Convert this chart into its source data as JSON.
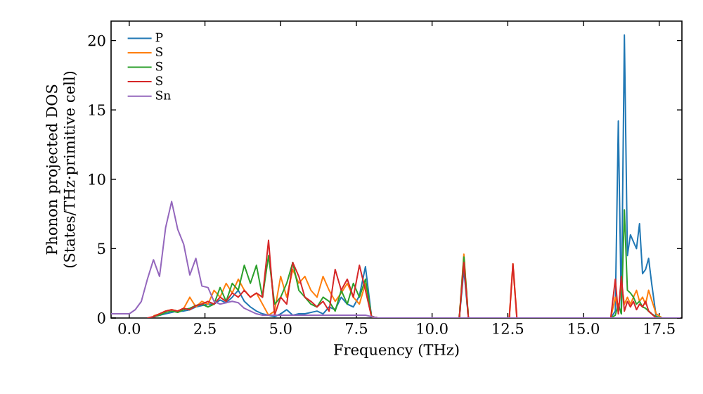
{
  "chart_data": {
    "type": "line",
    "xlabel": "Frequency (THz)",
    "ylabel": "Phonon projected DOS (States/THz·primitive cell)",
    "xlim": [
      -0.6,
      18.25
    ],
    "ylim": [
      0,
      21.4
    ],
    "xticks": [
      {
        "value": 0,
        "label": "0.0"
      },
      {
        "value": 2.5,
        "label": "2.5"
      },
      {
        "value": 5,
        "label": "5.0"
      },
      {
        "value": 7.5,
        "label": "7.5"
      },
      {
        "value": 10,
        "label": "10.0"
      },
      {
        "value": 12.5,
        "label": "12.5"
      },
      {
        "value": 15,
        "label": "15.0"
      },
      {
        "value": 17.5,
        "label": "17.5"
      }
    ],
    "yticks": [
      0,
      5,
      10,
      15,
      20
    ],
    "legend": "top left",
    "marker": "none",
    "line_style": "solid",
    "grid": false,
    "x": [
      -0.6,
      -0.4,
      -0.2,
      0,
      0.2,
      0.4,
      0.6,
      0.8,
      1.0,
      1.2,
      1.4,
      1.6,
      1.8,
      2.0,
      2.2,
      2.4,
      2.6,
      2.8,
      3.0,
      3.2,
      3.4,
      3.6,
      3.8,
      4.0,
      4.2,
      4.4,
      4.6,
      4.8,
      5.0,
      5.2,
      5.4,
      5.6,
      5.8,
      6.0,
      6.2,
      6.4,
      6.6,
      6.8,
      7.0,
      7.2,
      7.4,
      7.6,
      7.8,
      8.0,
      8.2,
      10.9,
      11.05,
      11.2,
      12.55,
      12.67,
      12.8,
      15.9,
      16.05,
      16.15,
      16.25,
      16.35,
      16.45,
      16.55,
      16.65,
      16.75,
      16.85,
      16.95,
      17.05,
      17.15,
      17.25,
      17.4,
      17.6,
      18.2
    ],
    "series": [
      {
        "name": "P",
        "color": "#1f77b4",
        "values": [
          null,
          null,
          null,
          null,
          null,
          null,
          null,
          0.1,
          0.2,
          0.3,
          0.4,
          0.5,
          0.5,
          0.6,
          0.8,
          0.9,
          1.0,
          1.0,
          1.3,
          1.1,
          1.5,
          2.0,
          1.2,
          0.8,
          0.5,
          0.3,
          0.2,
          0.1,
          0.3,
          0.6,
          0.2,
          0.3,
          0.3,
          0.4,
          0.5,
          0.3,
          0.8,
          0.6,
          1.5,
          1.0,
          0.8,
          1.6,
          3.7,
          0.1,
          0,
          0,
          3.5,
          0,
          0,
          null,
          0,
          0,
          0.5,
          14.2,
          0.3,
          20.4,
          4.5,
          6.0,
          5.5,
          5.0,
          6.8,
          3.2,
          3.5,
          4.3,
          2.5,
          0.1,
          0,
          0
        ]
      },
      {
        "name": "S",
        "color": "#ff7f0e",
        "values": [
          null,
          null,
          null,
          null,
          null,
          null,
          null,
          0.15,
          0.3,
          0.5,
          0.6,
          0.5,
          0.7,
          1.5,
          0.8,
          1.2,
          1.0,
          2.0,
          1.5,
          2.5,
          1.8,
          2.8,
          2.0,
          1.5,
          1.8,
          1.0,
          0.2,
          0.5,
          3.0,
          1.5,
          3.5,
          2.5,
          3.0,
          2.0,
          1.5,
          3.0,
          2.0,
          1.2,
          1.8,
          2.5,
          1.5,
          1.0,
          2.5,
          0.1,
          0,
          0,
          4.6,
          0,
          0,
          3.9,
          0,
          0,
          1.5,
          0.5,
          2.5,
          1.0,
          1.5,
          1.0,
          1.5,
          2.0,
          1.2,
          1.5,
          1.0,
          2.0,
          1.3,
          0.3,
          0,
          0
        ]
      },
      {
        "name": "S",
        "color": "#2ca02c",
        "values": [
          null,
          null,
          null,
          null,
          null,
          null,
          null,
          0.1,
          0.2,
          0.4,
          0.5,
          0.4,
          0.6,
          0.7,
          0.9,
          1.0,
          0.8,
          1.0,
          2.2,
          1.2,
          2.5,
          2.0,
          3.8,
          2.5,
          3.8,
          1.5,
          4.5,
          1.0,
          1.5,
          2.5,
          4.0,
          2.0,
          1.5,
          1.0,
          0.8,
          1.5,
          1.2,
          0.5,
          2.0,
          1.0,
          2.5,
          1.5,
          2.8,
          0.1,
          0,
          0,
          4.4,
          0,
          0,
          null,
          0,
          0,
          0.2,
          1.0,
          0.3,
          7.8,
          2.0,
          1.8,
          1.5,
          1.0,
          1.2,
          0.8,
          0.7,
          0.5,
          0.3,
          0.1,
          0,
          0
        ]
      },
      {
        "name": "S",
        "color": "#d62728",
        "values": [
          null,
          null,
          null,
          null,
          null,
          null,
          0,
          0.1,
          0.3,
          0.5,
          0.6,
          0.5,
          0.7,
          0.6,
          0.9,
          1.0,
          1.2,
          1.0,
          1.5,
          1.2,
          1.8,
          1.5,
          2.0,
          1.5,
          1.8,
          1.5,
          5.6,
          0.2,
          1.5,
          1.0,
          4.0,
          3.0,
          1.5,
          1.2,
          0.8,
          1.2,
          0.5,
          3.5,
          2.0,
          2.8,
          1.5,
          3.8,
          2.0,
          0.1,
          0,
          0,
          4.0,
          0,
          0,
          3.9,
          0,
          0,
          2.8,
          0.3,
          3.0,
          0.5,
          1.2,
          0.8,
          1.2,
          0.6,
          1.0,
          0.8,
          1.2,
          0.5,
          0.3,
          0,
          0,
          0
        ]
      },
      {
        "name": "Sn",
        "color": "#9467bd",
        "values": [
          0.3,
          0.3,
          0.3,
          0.3,
          0.6,
          1.2,
          2.8,
          4.2,
          3.0,
          6.5,
          8.4,
          6.4,
          5.3,
          3.1,
          4.3,
          2.3,
          2.2,
          1.2,
          1.0,
          1.1,
          1.2,
          1.1,
          0.7,
          0.5,
          0.3,
          0.2,
          0.2,
          0.2,
          0.2,
          0.2,
          0.2,
          0.2,
          0.2,
          0.2,
          0.2,
          0.2,
          0.2,
          0.2,
          0.2,
          0.2,
          0.2,
          0.2,
          0.2,
          0.1,
          0,
          0,
          0,
          0,
          0,
          0,
          0,
          0,
          0,
          0,
          0,
          0,
          0,
          0,
          0,
          0,
          0,
          0,
          0,
          0,
          0,
          0,
          0,
          0
        ]
      }
    ]
  }
}
